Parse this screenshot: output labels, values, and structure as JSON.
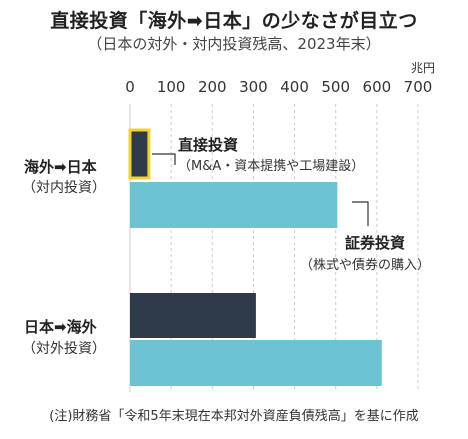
{
  "title": "直接投資「海外➡日本」の少なさが目立つ",
  "subtitle": "（日本の対外・対内投資残高、2023年末）",
  "footnote": "(注)財務省「令和5年末現在本邦対外資産負債残高」を基に作成",
  "colors": {
    "direct": "#2e3b4a",
    "securities": "#6cc3d2",
    "highlight": "#f3d235",
    "grid": "#cccccc"
  },
  "chart_data": {
    "type": "bar",
    "orientation": "horizontal",
    "unit": "兆円",
    "xlim": [
      0,
      700
    ],
    "ticks": [
      0,
      100,
      200,
      300,
      400,
      500,
      600,
      700
    ],
    "tick_labels": [
      "0",
      "100",
      "200",
      "300",
      "400",
      "500",
      "600",
      "700"
    ],
    "grid": true,
    "categories": [
      {
        "line1": "海外➡日本",
        "line2": "（対内投資）"
      },
      {
        "line1": "日本➡海外",
        "line2": "（対外投資）"
      }
    ],
    "series": [
      {
        "name": "直接投資",
        "note": "（M&A・資本提携や工場建設）",
        "values": [
          46,
          306
        ]
      },
      {
        "name": "証券投資",
        "note": "（株式や債券の購入）",
        "values": [
          504,
          612
        ]
      }
    ]
  }
}
